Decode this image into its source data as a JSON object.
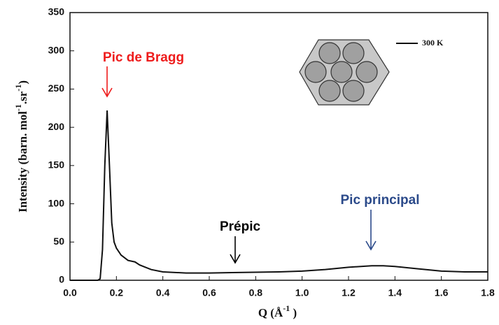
{
  "chart_data": {
    "type": "line",
    "x_label": [
      {
        "text": "Q ("
      },
      {
        "text": "Å"
      },
      {
        "sup": "-1"
      },
      {
        "text": " )"
      }
    ],
    "y_label": [
      {
        "text": "Intensity (barn. mol"
      },
      {
        "sup": "-1"
      },
      {
        "text": ".sr"
      },
      {
        "sup": "-1"
      },
      {
        "text": ")"
      }
    ],
    "x": [
      0.0,
      0.12,
      0.13,
      0.14,
      0.15,
      0.16,
      0.17,
      0.18,
      0.19,
      0.2,
      0.22,
      0.25,
      0.28,
      0.3,
      0.35,
      0.4,
      0.5,
      0.6,
      0.7,
      0.8,
      0.9,
      1.0,
      1.1,
      1.2,
      1.3,
      1.35,
      1.4,
      1.5,
      1.6,
      1.7,
      1.8
    ],
    "series": [
      {
        "name": "300 K",
        "color": "#111111",
        "values": [
          0,
          0,
          2,
          40,
          150,
          222,
          150,
          75,
          50,
          42,
          33,
          26,
          24,
          20,
          14,
          11,
          9.5,
          9.5,
          10,
          10.5,
          11,
          12,
          14,
          17,
          19,
          19,
          18,
          15,
          12,
          11,
          11
        ]
      }
    ],
    "annotations": [
      {
        "text": "Pic de Bragg",
        "color": "#ee1c1c"
      },
      {
        "text": "Prépic",
        "color": "#000000"
      },
      {
        "text": "Pic principal",
        "color": "#2b4a8a"
      }
    ],
    "xlim": [
      0,
      1.8
    ],
    "xticks": [
      {
        "value": 0,
        "label": "0.0"
      },
      {
        "value": 0.2,
        "label": "0.2"
      },
      {
        "value": 0.4,
        "label": "0.4"
      },
      {
        "value": 0.6,
        "label": "0.6"
      },
      {
        "value": 0.8,
        "label": "0.8"
      },
      {
        "value": 1.0,
        "label": "1.0"
      },
      {
        "value": 1.2,
        "label": "1.2"
      },
      {
        "value": 1.4,
        "label": "1.4"
      },
      {
        "value": 1.6,
        "label": "1.6"
      },
      {
        "value": 1.8,
        "label": "1.8"
      }
    ],
    "ylim": [
      0,
      350
    ],
    "yticks": [
      0,
      50,
      100,
      150,
      200,
      250,
      300,
      350
    ],
    "grid": false
  }
}
